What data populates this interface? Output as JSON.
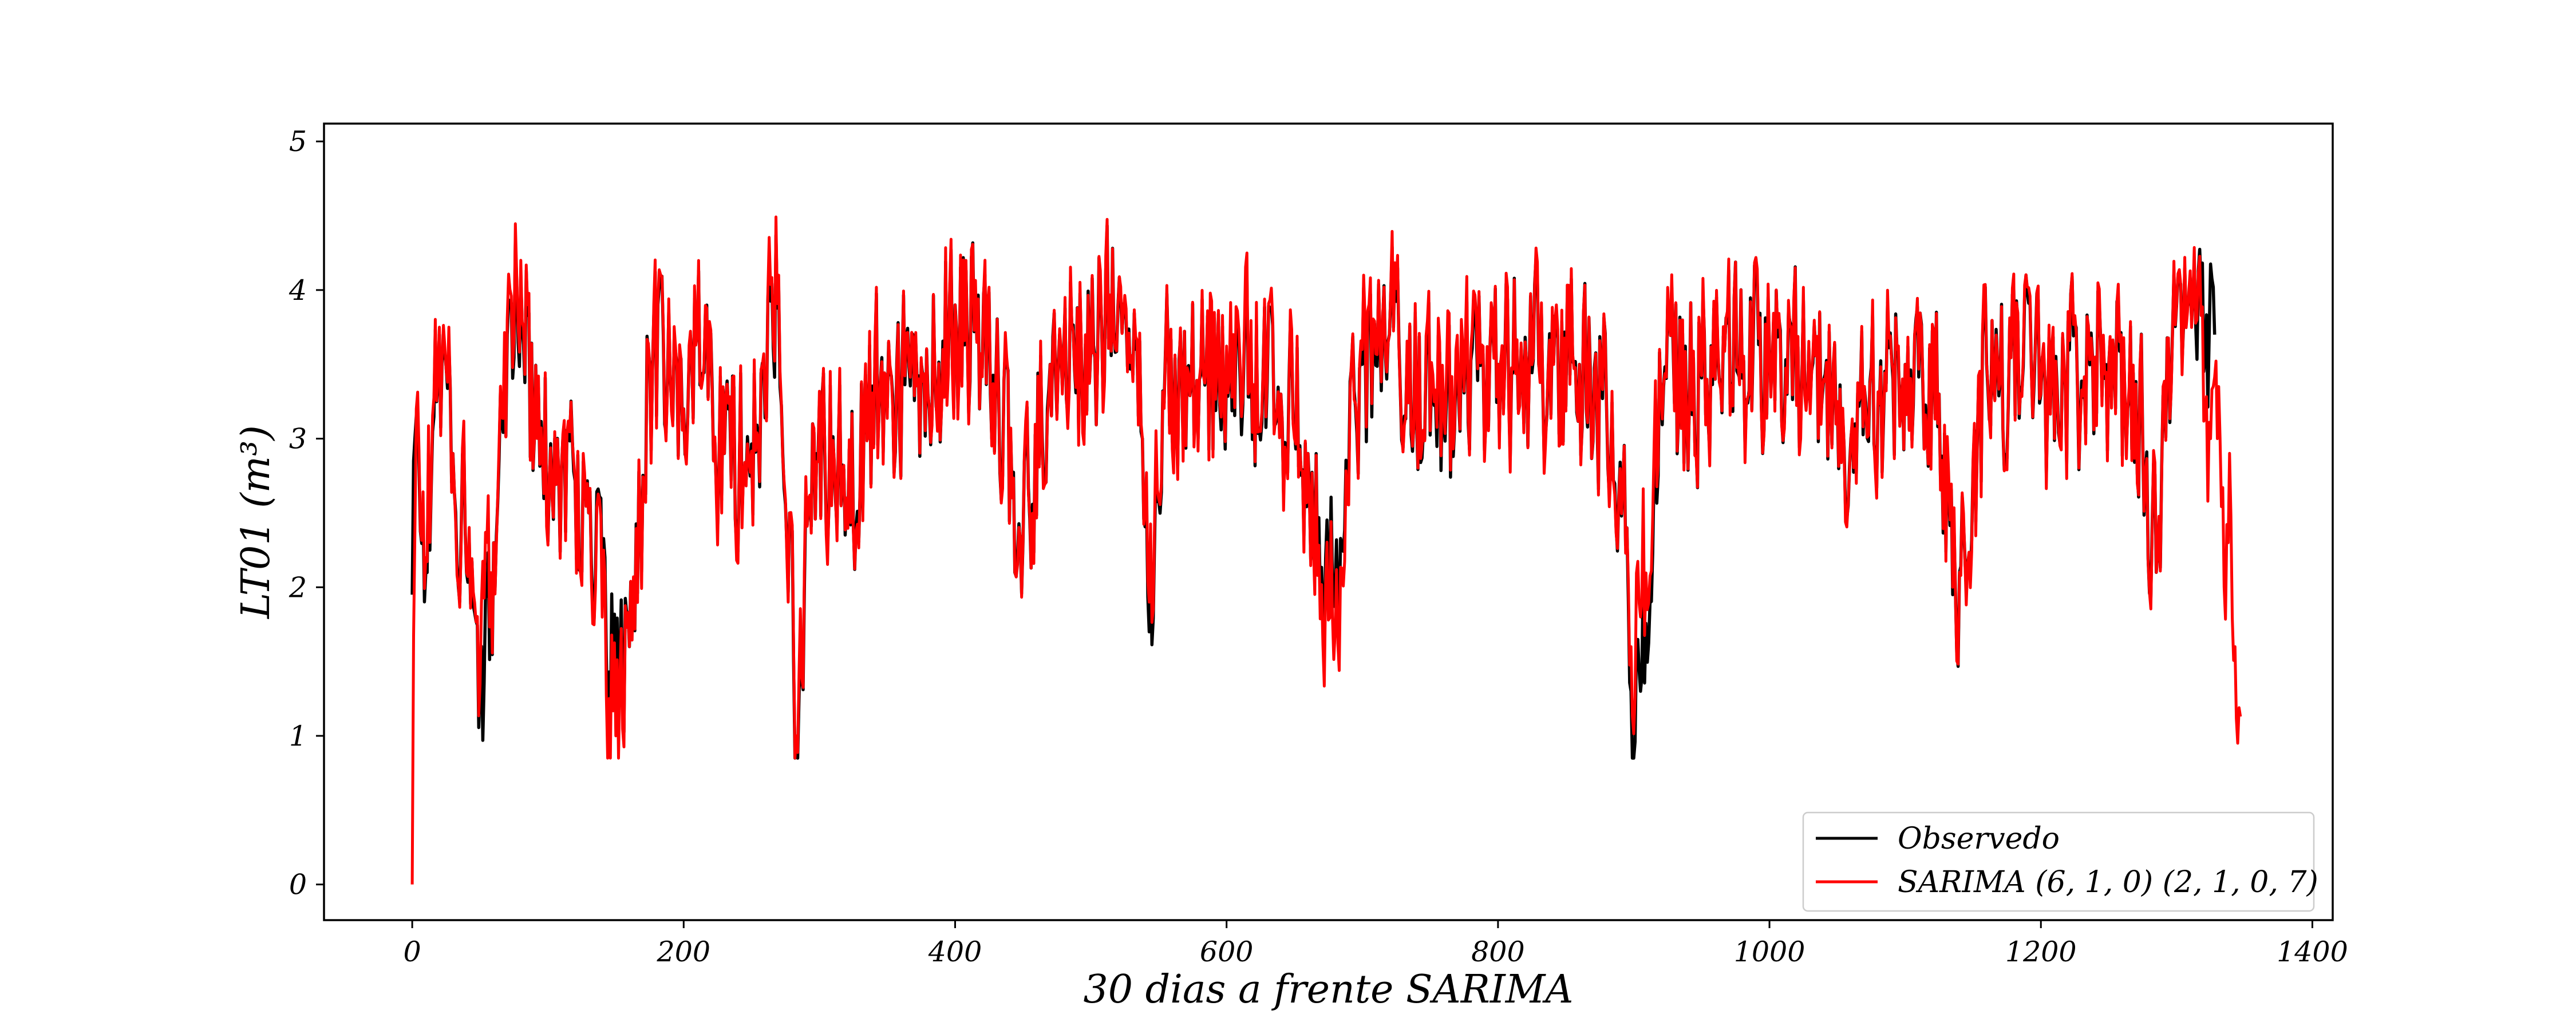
{
  "chart_data": {
    "type": "line",
    "xlabel": "30 dias a frente SARIMA",
    "ylabel": "LT01 (m³)",
    "xlim": [
      -65,
      1415
    ],
    "ylim": [
      -0.24,
      5.12
    ],
    "x_ticks": [
      0,
      200,
      400,
      600,
      800,
      1000,
      1200,
      1400
    ],
    "y_ticks": [
      0,
      1,
      2,
      3,
      4,
      5
    ],
    "grid": false,
    "legend_position": "lower-right",
    "series": [
      {
        "name": "Observedo",
        "color": "#000000",
        "x_end": 1328,
        "anchors": [
          [
            0,
            1.95
          ],
          [
            3,
            3.15
          ],
          [
            10,
            2.1
          ],
          [
            20,
            3.7
          ],
          [
            30,
            2.9
          ],
          [
            40,
            2.1
          ],
          [
            50,
            1.3
          ],
          [
            52,
            0.97
          ],
          [
            60,
            2.3
          ],
          [
            70,
            3.7
          ],
          [
            80,
            4.1
          ],
          [
            90,
            3.0
          ],
          [
            110,
            2.8
          ],
          [
            130,
            2.5
          ],
          [
            150,
            1.3
          ],
          [
            160,
            1.6
          ],
          [
            175,
            3.5
          ],
          [
            200,
            3.2
          ],
          [
            210,
            3.7
          ],
          [
            230,
            2.9
          ],
          [
            255,
            3.0
          ],
          [
            270,
            4.0
          ],
          [
            278,
            2.5
          ],
          [
            283,
            0.86
          ],
          [
            295,
            3.1
          ],
          [
            320,
            2.6
          ],
          [
            345,
            3.4
          ],
          [
            380,
            3.3
          ],
          [
            400,
            3.9
          ],
          [
            430,
            3.4
          ],
          [
            450,
            2.3
          ],
          [
            470,
            3.5
          ],
          [
            500,
            3.6
          ],
          [
            520,
            3.9
          ],
          [
            538,
            3.0
          ],
          [
            543,
            1.7
          ],
          [
            555,
            3.6
          ],
          [
            580,
            3.4
          ],
          [
            610,
            3.4
          ],
          [
            640,
            3.3
          ],
          [
            660,
            2.9
          ],
          [
            680,
            2.0
          ],
          [
            700,
            3.5
          ],
          [
            720,
            3.7
          ],
          [
            760,
            3.1
          ],
          [
            800,
            3.5
          ],
          [
            830,
            3.5
          ],
          [
            860,
            3.5
          ],
          [
            880,
            3.2
          ],
          [
            895,
            2.4
          ],
          [
            898,
            1.3
          ],
          [
            905,
            1.3
          ],
          [
            920,
            3.3
          ],
          [
            960,
            3.4
          ],
          [
            1000,
            3.6
          ],
          [
            1040,
            3.4
          ],
          [
            1060,
            3.0
          ],
          [
            1100,
            3.5
          ],
          [
            1125,
            3.3
          ],
          [
            1135,
            1.95
          ],
          [
            1140,
            2.1
          ],
          [
            1160,
            3.5
          ],
          [
            1200,
            3.3
          ],
          [
            1250,
            3.5
          ],
          [
            1275,
            3.0
          ],
          [
            1285,
            2.1
          ],
          [
            1300,
            3.9
          ],
          [
            1328,
            3.7
          ]
        ]
      },
      {
        "name": "SARIMA (6, 1, 0) (2, 1, 0, 7)",
        "color": "#ff0000",
        "x_end": 1347,
        "anchors": [
          [
            0,
            0.0
          ],
          [
            3,
            3.2
          ],
          [
            10,
            2.2
          ],
          [
            20,
            3.75
          ],
          [
            30,
            2.9
          ],
          [
            40,
            2.1
          ],
          [
            50,
            1.35
          ],
          [
            60,
            2.3
          ],
          [
            70,
            3.8
          ],
          [
            80,
            4.2
          ],
          [
            90,
            3.0
          ],
          [
            110,
            2.8
          ],
          [
            130,
            2.5
          ],
          [
            150,
            1.0
          ],
          [
            160,
            1.6
          ],
          [
            175,
            3.5
          ],
          [
            200,
            3.2
          ],
          [
            210,
            3.7
          ],
          [
            230,
            2.9
          ],
          [
            255,
            3.0
          ],
          [
            270,
            4.1
          ],
          [
            278,
            2.5
          ],
          [
            283,
            1.0
          ],
          [
            295,
            3.1
          ],
          [
            320,
            2.6
          ],
          [
            345,
            3.4
          ],
          [
            380,
            3.3
          ],
          [
            400,
            3.9
          ],
          [
            430,
            3.4
          ],
          [
            450,
            2.3
          ],
          [
            470,
            3.5
          ],
          [
            500,
            3.6
          ],
          [
            520,
            3.9
          ],
          [
            538,
            3.0
          ],
          [
            543,
            1.9
          ],
          [
            555,
            3.6
          ],
          [
            580,
            3.4
          ],
          [
            610,
            3.5
          ],
          [
            640,
            3.3
          ],
          [
            660,
            2.9
          ],
          [
            680,
            1.7
          ],
          [
            700,
            3.6
          ],
          [
            720,
            3.7
          ],
          [
            760,
            3.2
          ],
          [
            800,
            3.5
          ],
          [
            830,
            3.5
          ],
          [
            860,
            3.5
          ],
          [
            880,
            3.2
          ],
          [
            895,
            2.4
          ],
          [
            898,
            1.6
          ],
          [
            905,
            1.8
          ],
          [
            920,
            3.3
          ],
          [
            960,
            3.4
          ],
          [
            1000,
            3.6
          ],
          [
            1040,
            3.4
          ],
          [
            1060,
            3.0
          ],
          [
            1100,
            3.5
          ],
          [
            1125,
            3.3
          ],
          [
            1135,
            2.0
          ],
          [
            1140,
            2.1
          ],
          [
            1160,
            3.5
          ],
          [
            1200,
            3.3
          ],
          [
            1250,
            3.5
          ],
          [
            1275,
            3.0
          ],
          [
            1285,
            2.1
          ],
          [
            1300,
            3.9
          ],
          [
            1315,
            3.8
          ],
          [
            1325,
            3.0
          ],
          [
            1330,
            3.0
          ],
          [
            1338,
            2.3
          ],
          [
            1343,
            1.6
          ],
          [
            1347,
            1.13
          ]
        ]
      }
    ]
  }
}
